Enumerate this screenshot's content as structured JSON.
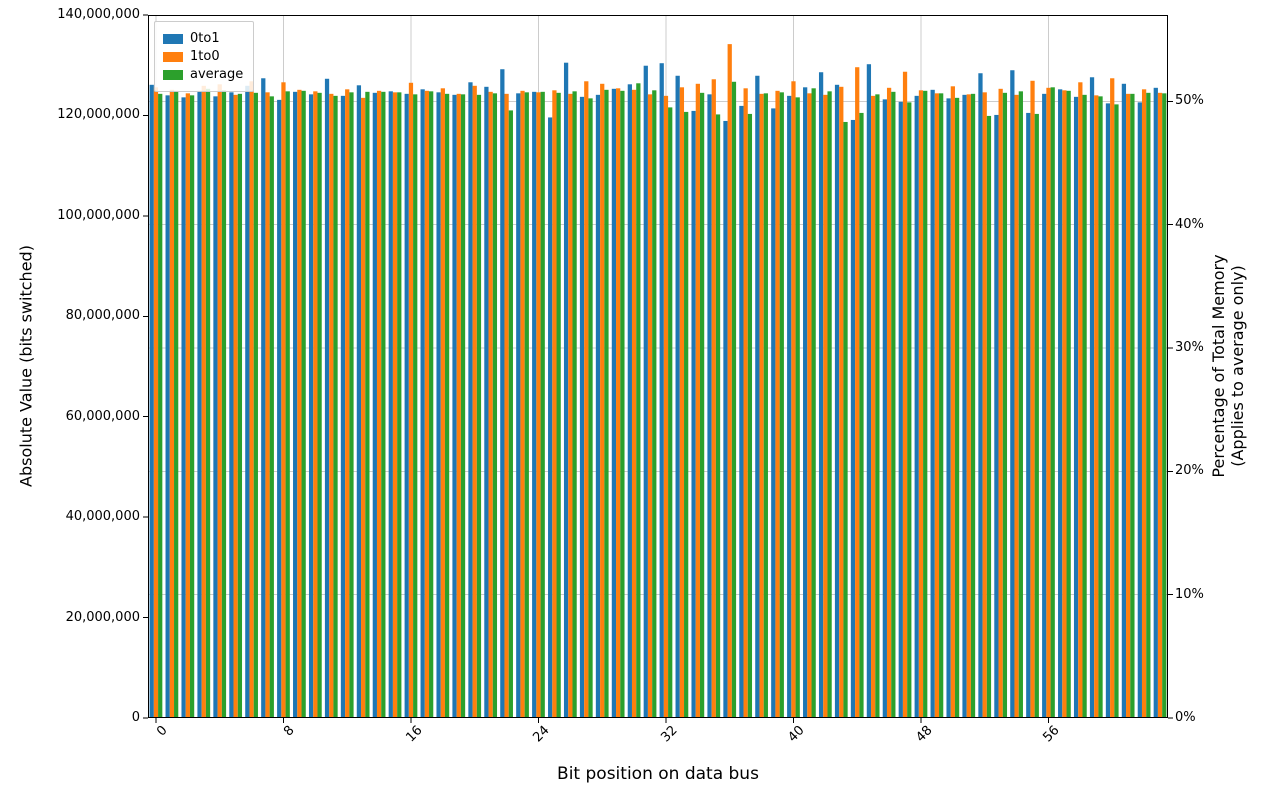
{
  "chart_data": {
    "type": "bar",
    "title": "",
    "xlabel": "Bit position on data bus",
    "ylabel_left": "Absolute Value (bits switched)",
    "ylabel_right_line1": "Percentage of Total Memory",
    "ylabel_right_line2": "(Applies to average only)",
    "grid": true,
    "legend_position": "upper left",
    "categories": [
      0,
      1,
      2,
      3,
      4,
      5,
      6,
      7,
      8,
      9,
      10,
      11,
      12,
      13,
      14,
      15,
      16,
      17,
      18,
      19,
      20,
      21,
      22,
      23,
      24,
      25,
      26,
      27,
      28,
      29,
      30,
      31,
      32,
      33,
      34,
      35,
      36,
      37,
      38,
      39,
      40,
      41,
      42,
      43,
      44,
      45,
      46,
      47,
      48,
      49,
      50,
      51,
      52,
      53,
      54,
      55,
      56,
      57,
      58,
      59,
      60,
      61,
      62,
      63
    ],
    "left_axis": {
      "min": 0,
      "max": 140000000,
      "ticks": [
        0,
        20000000,
        40000000,
        60000000,
        80000000,
        100000000,
        120000000,
        140000000
      ],
      "tick_labels": [
        "0",
        "20,000,000",
        "40,000,000",
        "60,000,000",
        "80,000,000",
        "100,000,000",
        "120,000,000",
        "140,000,000"
      ]
    },
    "right_axis": {
      "min": 0,
      "max": 57,
      "ticks": [
        0,
        10,
        20,
        30,
        40,
        50
      ],
      "tick_labels": [
        "0%",
        "10%",
        "20%",
        "30%",
        "40%",
        "50%"
      ]
    },
    "x_ticks": [
      0,
      8,
      16,
      24,
      32,
      40,
      48,
      56
    ],
    "x_tick_labels": [
      "0",
      "8",
      "16",
      "24",
      "32",
      "40",
      "48",
      "56"
    ],
    "series": [
      {
        "name": "0to1",
        "color": "#1f77b4",
        "values": [
          126100000,
          124000000,
          123600000,
          124900000,
          123800000,
          124600000,
          125900000,
          127400000,
          123100000,
          124700000,
          124200000,
          127300000,
          123900000,
          126000000,
          124500000,
          124800000,
          124300000,
          125200000,
          124600000,
          124100000,
          126600000,
          125700000,
          129200000,
          124400000,
          124700000,
          119600000,
          130500000,
          123700000,
          124100000,
          125300000,
          126200000,
          129900000,
          130400000,
          127900000,
          120900000,
          124200000,
          118900000,
          121900000,
          127900000,
          121400000,
          123900000,
          125600000,
          128600000,
          126100000,
          119100000,
          130200000,
          123200000,
          122700000,
          123900000,
          125100000,
          123400000,
          124100000,
          128400000,
          120100000,
          129000000,
          120500000,
          124300000,
          125200000,
          123700000,
          127600000,
          122400000,
          126300000,
          122600000,
          125500000
        ]
      },
      {
        "name": "1to0",
        "color": "#ff7f0e",
        "values": [
          125600000,
          125100000,
          124400000,
          125900000,
          126200000,
          124100000,
          126800000,
          124600000,
          126600000,
          125100000,
          124800000,
          124300000,
          125200000,
          123500000,
          124900000,
          124600000,
          126500000,
          124900000,
          125400000,
          124300000,
          125900000,
          124700000,
          124300000,
          124900000,
          124600000,
          125000000,
          124300000,
          126800000,
          126300000,
          125400000,
          125100000,
          124200000,
          123900000,
          125600000,
          126300000,
          127200000,
          134200000,
          125400000,
          124300000,
          124900000,
          126800000,
          124400000,
          124100000,
          125700000,
          129600000,
          123900000,
          125500000,
          128700000,
          125000000,
          124400000,
          125800000,
          124200000,
          124600000,
          125300000,
          124100000,
          126900000,
          125500000,
          125000000,
          126600000,
          124000000,
          127400000,
          124300000,
          125200000,
          124500000
        ]
      },
      {
        "name": "average",
        "color": "#2ca02c",
        "values": [
          124300000,
          124900000,
          124000000,
          125300000,
          125000000,
          124300000,
          124500000,
          123800000,
          124800000,
          124900000,
          124500000,
          123900000,
          124600000,
          124700000,
          124700000,
          124600000,
          124200000,
          124800000,
          124300000,
          124200000,
          124100000,
          124400000,
          121000000,
          124600000,
          124700000,
          124500000,
          124800000,
          123400000,
          125100000,
          124900000,
          126400000,
          125000000,
          121600000,
          120700000,
          124500000,
          120200000,
          126700000,
          120300000,
          124400000,
          124600000,
          123600000,
          125400000,
          124800000,
          118700000,
          120500000,
          124200000,
          124700000,
          122600000,
          124900000,
          124400000,
          123500000,
          124300000,
          119900000,
          124500000,
          124800000,
          120300000,
          125600000,
          124900000,
          124100000,
          123800000,
          122200000,
          124300000,
          124500000,
          124400000
        ]
      }
    ]
  }
}
